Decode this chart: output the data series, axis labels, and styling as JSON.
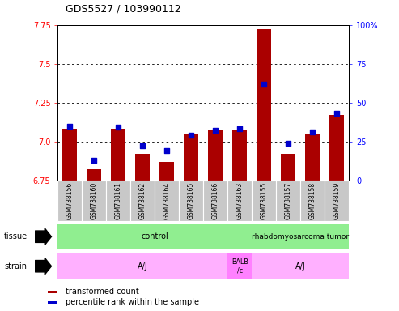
{
  "title": "GDS5527 / 103990112",
  "samples": [
    "GSM738156",
    "GSM738160",
    "GSM738161",
    "GSM738162",
    "GSM738164",
    "GSM738165",
    "GSM738166",
    "GSM738163",
    "GSM738155",
    "GSM738157",
    "GSM738158",
    "GSM738159"
  ],
  "red_values": [
    7.08,
    6.82,
    7.08,
    6.92,
    6.87,
    7.05,
    7.07,
    7.07,
    7.72,
    6.92,
    7.05,
    7.17
  ],
  "blue_values": [
    35,
    13,
    34,
    22,
    19,
    29,
    32,
    33,
    62,
    24,
    31,
    43
  ],
  "ylim_left": [
    6.75,
    7.75
  ],
  "ylim_right": [
    0,
    100
  ],
  "yticks_left": [
    6.75,
    7.0,
    7.25,
    7.5,
    7.75
  ],
  "yticks_right": [
    0,
    25,
    50,
    75,
    100
  ],
  "bar_color": "#AA0000",
  "dot_color": "#0000CC",
  "tick_area_color": "#C8C8C8",
  "tissue_color_control": "#90EE90",
  "tissue_color_tumor": "#90EE90",
  "strain_color_aj": "#FFB0FF",
  "strain_color_balb": "#FF80FF",
  "legend_items": [
    {
      "color": "#AA0000",
      "label": "transformed count"
    },
    {
      "color": "#0000CC",
      "label": "percentile rank within the sample"
    }
  ],
  "tissue_label": "tissue",
  "strain_label": "strain",
  "n_control": 8,
  "n_samples": 12
}
